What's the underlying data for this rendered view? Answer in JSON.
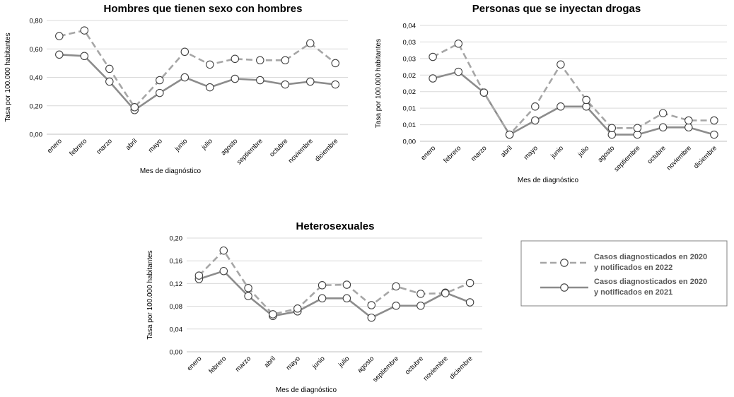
{
  "chart_data": [
    {
      "type": "line",
      "title": "Hombres que tienen sexo con hombres",
      "xlabel": "Mes de diagnóstico",
      "ylabel": "Tasa por 100.000 habitantes",
      "categories": [
        "enero",
        "febrero",
        "marzo",
        "abril",
        "mayo",
        "junio",
        "julio",
        "agosto",
        "septiembre",
        "octubre",
        "noviembre",
        "diciembre"
      ],
      "ylim": [
        0,
        0.8
      ],
      "yticks": [
        "0,00",
        "0,20",
        "0,40",
        "0,60",
        "0,80"
      ],
      "yticks_values": [
        0,
        0.2,
        0.4,
        0.6,
        0.8
      ],
      "grid": true,
      "series": [
        {
          "name": "Casos diagnosticados en 2020 y notificados en 2022",
          "style": "dashed",
          "values": [
            0.69,
            0.73,
            0.46,
            0.19,
            0.38,
            0.58,
            0.49,
            0.53,
            0.52,
            0.52,
            0.64,
            0.5
          ]
        },
        {
          "name": "Casos diagnosticados en 2020 y notificados en 2021",
          "style": "solid",
          "values": [
            0.56,
            0.55,
            0.37,
            0.17,
            0.29,
            0.4,
            0.33,
            0.39,
            0.38,
            0.35,
            0.37,
            0.35
          ]
        }
      ]
    },
    {
      "type": "line",
      "title": "Personas que se inyectan drogas",
      "xlabel": "Mes de diagnóstico",
      "ylabel": "Tasa por 100.000 habitantes",
      "categories": [
        "enero",
        "febrero",
        "marzo",
        "abril",
        "mayo",
        "junio",
        "julio",
        "agosto",
        "septiembre",
        "octubre",
        "noviembre",
        "diciembre"
      ],
      "ylim": [
        0,
        0.035
      ],
      "yticks": [
        "0,00",
        "0,01",
        "0,01",
        "0,02",
        "0,02",
        "0,03",
        "0,03",
        "0,04"
      ],
      "yticks_values": [
        0,
        0.005,
        0.01,
        0.015,
        0.02,
        0.025,
        0.03,
        0.035
      ],
      "grid": true,
      "series": [
        {
          "name": "Casos diagnosticados en 2020 y notificados en 2022",
          "style": "dashed",
          "values": [
            0.0255,
            0.0295,
            0.0147,
            0.002,
            0.0105,
            0.0232,
            0.0125,
            0.004,
            0.004,
            0.0085,
            0.0063,
            0.0063
          ]
        },
        {
          "name": "Casos diagnosticados en 2020 y notificados en 2021",
          "style": "solid",
          "values": [
            0.019,
            0.021,
            0.0147,
            0.002,
            0.0063,
            0.0105,
            0.0105,
            0.002,
            0.002,
            0.0042,
            0.0042,
            0.002
          ]
        }
      ]
    },
    {
      "type": "line",
      "title": "Heterosexuales",
      "xlabel": "Mes de diagnóstico",
      "ylabel": "Tasa por 100.000 habitantes",
      "categories": [
        "enero",
        "febrero",
        "marzo",
        "abril",
        "mayo",
        "junio",
        "julio",
        "agosto",
        "septiembre",
        "octubre",
        "noviembre",
        "diciembre"
      ],
      "ylim": [
        0,
        0.2
      ],
      "yticks": [
        "0,00",
        "0,04",
        "0,08",
        "0,12",
        "0,16",
        "0,20"
      ],
      "yticks_values": [
        0,
        0.04,
        0.08,
        0.12,
        0.16,
        0.2
      ],
      "grid": true,
      "series": [
        {
          "name": "Casos diagnosticados en 2020 y notificados en 2022",
          "style": "dashed",
          "values": [
            0.134,
            0.178,
            0.112,
            0.066,
            0.076,
            0.117,
            0.118,
            0.082,
            0.115,
            0.102,
            0.103,
            0.121
          ]
        },
        {
          "name": "Casos diagnosticados en 2020 y notificados en 2021",
          "style": "solid",
          "values": [
            0.128,
            0.142,
            0.098,
            0.063,
            0.071,
            0.094,
            0.094,
            0.06,
            0.081,
            0.081,
            0.104,
            0.087
          ]
        }
      ]
    }
  ],
  "legend": {
    "colors": {
      "line": "#a6a6a6",
      "line_solid": "#8c8c8c",
      "marker_fill": "#ffffff",
      "marker_stroke": "#404040",
      "grid": "#d9d9d9"
    },
    "items": [
      {
        "line1": "Casos diagnosticados en 2020",
        "line2": "y notificados en 2022",
        "style": "dashed"
      },
      {
        "line1": "Casos diagnosticados en 2020",
        "line2": "y notificados en 2021",
        "style": "solid"
      }
    ]
  }
}
